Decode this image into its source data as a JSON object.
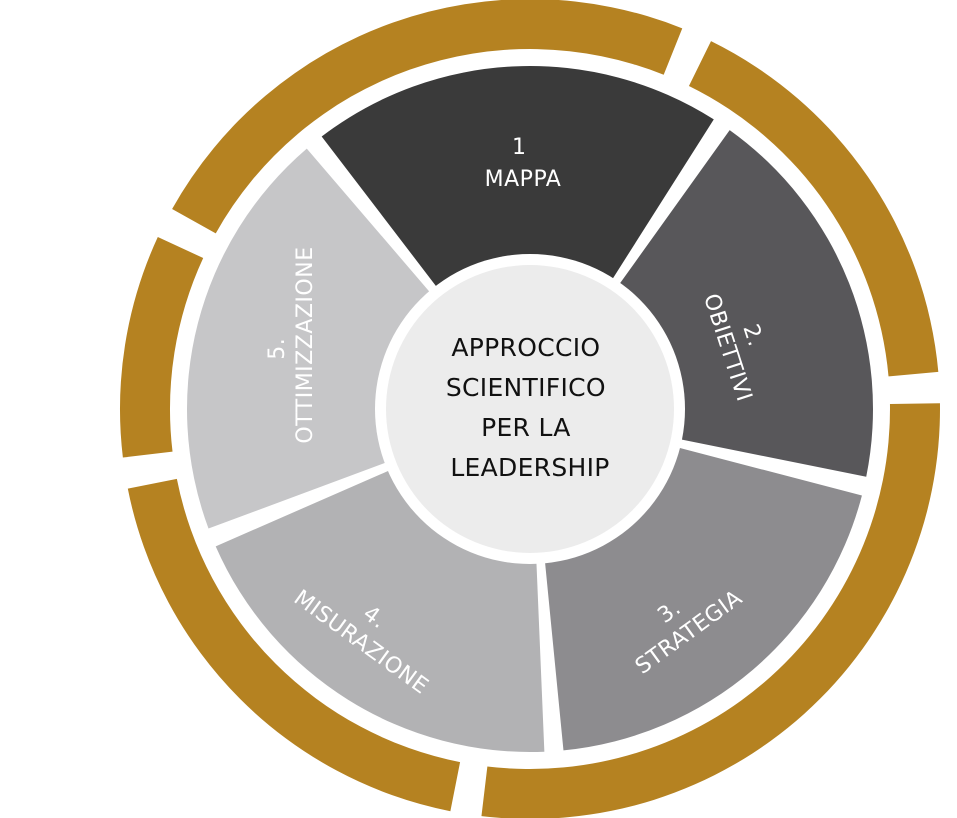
{
  "center": {
    "lines": [
      "APPROCCIO",
      "SCIENTIFICO",
      "PER LA",
      "LEADERSHIP"
    ]
  },
  "segments": [
    {
      "number": "1",
      "label": "MAPPA"
    },
    {
      "number": "2.",
      "label": "OBIETTIVI"
    },
    {
      "number": "3.",
      "label": "STRATEGIA"
    },
    {
      "number": "4.",
      "label": "MISURAZIONE"
    },
    {
      "number": "5.",
      "label": "OTTIMIZZAZIONE"
    }
  ],
  "colors": {
    "ring": "#b58221",
    "center_fill": "#ececec",
    "segment_fills": [
      "#3a3a3a",
      "#58575a",
      "#8d8c8f",
      "#b2b2b4",
      "#c6c6c8"
    ]
  }
}
